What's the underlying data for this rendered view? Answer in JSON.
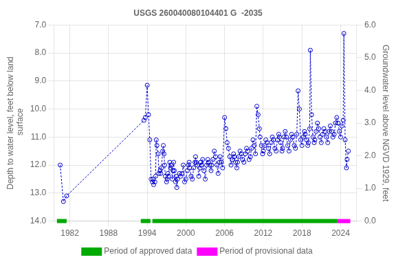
{
  "chart_data": {
    "type": "line",
    "title": "USGS 260040080104401 G  -2035",
    "ylabel": "Depth to water level, feet below land\n surface",
    "y2label": "Groundwater level above NGVD 1929, feet",
    "xlim": [
      1979.5,
      2026.5
    ],
    "xticks": [
      1982,
      1988,
      1994,
      2000,
      2006,
      2012,
      2018,
      2024
    ],
    "ylim": [
      14.0,
      7.0
    ],
    "yticks": [
      {
        "value": 7.0,
        "label": "7.0"
      },
      {
        "value": 8.0,
        "label": "8.0"
      },
      {
        "value": 9.0,
        "label": "9.0"
      },
      {
        "value": 10.0,
        "label": "10.0"
      },
      {
        "value": 11.0,
        "label": "11.0"
      },
      {
        "value": 12.0,
        "label": "12.0"
      },
      {
        "value": 13.0,
        "label": "13.0"
      },
      {
        "value": 14.0,
        "label": "14.0"
      }
    ],
    "y2lim": [
      0.0,
      6.0
    ],
    "y2ticks": [
      {
        "value": 0.0,
        "label": "0.0"
      },
      {
        "value": 1.0,
        "label": "1.0"
      },
      {
        "value": 2.0,
        "label": "2.0"
      },
      {
        "value": 3.0,
        "label": "3.0"
      },
      {
        "value": 4.0,
        "label": "4.0"
      },
      {
        "value": 5.0,
        "label": "5.0"
      },
      {
        "value": 6.0,
        "label": "6.0"
      }
    ],
    "grid": true,
    "legend": "bottom",
    "x": [
      1980.5,
      1981.0,
      1981.5,
      1993.5,
      1993.7,
      1994.0,
      1994.2,
      1994.4,
      1994.6,
      1994.8,
      1994.9,
      1995.0,
      1995.2,
      1995.3,
      1995.4,
      1995.5,
      1995.7,
      1995.8,
      1996.0,
      1996.1,
      1996.2,
      1996.4,
      1996.5,
      1996.6,
      1996.7,
      1996.8,
      1997.0,
      1997.1,
      1997.2,
      1997.3,
      1997.5,
      1997.6,
      1997.7,
      1997.9,
      1998.0,
      1998.1,
      1998.2,
      1998.4,
      1998.5,
      1998.6,
      1998.7,
      1999.0,
      1999.2,
      1999.4,
      1999.6,
      1999.8,
      2000.0,
      2000.2,
      2000.4,
      2000.5,
      2000.6,
      2000.8,
      2001.0,
      2001.2,
      2001.4,
      2001.5,
      2001.6,
      2001.8,
      2002.0,
      2002.2,
      2002.3,
      2002.4,
      2002.6,
      2002.8,
      2003.0,
      2003.2,
      2003.4,
      2003.5,
      2003.7,
      2003.9,
      2004.0,
      2004.2,
      2004.4,
      2004.6,
      2004.8,
      2005.0,
      2005.2,
      2005.3,
      2005.5,
      2005.7,
      2006.0,
      2006.2,
      2006.4,
      2006.6,
      2006.8,
      2007.0,
      2007.2,
      2007.4,
      2007.5,
      2007.7,
      2007.9,
      2008.0,
      2008.2,
      2008.4,
      2008.6,
      2008.8,
      2009.0,
      2009.2,
      2009.4,
      2009.6,
      2009.8,
      2010.0,
      2010.2,
      2010.4,
      2010.6,
      2010.8,
      2011.0,
      2011.2,
      2011.4,
      2011.5,
      2011.7,
      2011.9,
      2012.0,
      2012.2,
      2012.4,
      2012.6,
      2012.8,
      2013.0,
      2013.2,
      2013.4,
      2013.6,
      2013.8,
      2014.0,
      2014.2,
      2014.4,
      2014.5,
      2014.7,
      2014.9,
      2015.0,
      2015.2,
      2015.4,
      2015.6,
      2015.8,
      2016.0,
      2016.2,
      2016.4,
      2016.6,
      2016.8,
      2017.0,
      2017.2,
      2017.4,
      2017.6,
      2017.8,
      2018.0,
      2018.2,
      2018.4,
      2018.5,
      2018.7,
      2018.9,
      2019.0,
      2019.2,
      2019.3,
      2019.5,
      2019.7,
      2019.9,
      2020.0,
      2020.2,
      2020.4,
      2020.6,
      2020.8,
      2021.0,
      2021.2,
      2021.4,
      2021.6,
      2021.8,
      2022.0,
      2022.2,
      2022.4,
      2022.6,
      2022.8,
      2023.0,
      2023.2,
      2023.4,
      2023.6,
      2023.8,
      2024.0,
      2024.2,
      2024.4,
      2024.5,
      2024.7,
      2024.9,
      2025.0,
      2025.2
    ],
    "series": [
      {
        "color": "#0000cc",
        "line_style": "dashed",
        "marker": "circle",
        "values": [
          12.0,
          13.3,
          13.1,
          10.4,
          10.3,
          9.15,
          10.2,
          11.1,
          12.5,
          12.6,
          12.5,
          12.7,
          12.6,
          12.4,
          11.1,
          11.3,
          11.6,
          12.3,
          12.2,
          12.3,
          12.1,
          11.5,
          11.3,
          11.6,
          12.0,
          12.4,
          12.6,
          12.5,
          12.3,
          12.4,
          11.9,
          12.1,
          12.0,
          12.5,
          12.2,
          11.9,
          12.2,
          12.6,
          12.4,
          12.8,
          12.5,
          12.3,
          12.4,
          12.3,
          12.0,
          12.6,
          12.5,
          12.2,
          12.0,
          11.9,
          12.1,
          12.4,
          12.5,
          12.1,
          11.9,
          11.7,
          11.9,
          12.0,
          12.4,
          12.1,
          11.9,
          12.0,
          11.8,
          12.2,
          12.5,
          12.0,
          11.8,
          11.9,
          12.0,
          12.2,
          12.0,
          11.8,
          11.5,
          11.7,
          12.0,
          12.3,
          11.9,
          11.7,
          11.9,
          12.1,
          10.3,
          10.7,
          11.2,
          11.4,
          11.7,
          12.0,
          11.8,
          11.6,
          11.7,
          11.9,
          12.1,
          11.9,
          11.7,
          11.5,
          11.6,
          11.8,
          11.9,
          11.6,
          11.4,
          11.5,
          11.8,
          11.7,
          11.4,
          11.1,
          11.3,
          11.6,
          9.9,
          10.2,
          10.7,
          11.0,
          11.3,
          11.6,
          11.5,
          11.3,
          11.1,
          11.2,
          11.4,
          11.6,
          11.2,
          11.0,
          11.1,
          11.4,
          11.5,
          11.1,
          10.9,
          11.0,
          11.2,
          11.5,
          11.4,
          11.0,
          10.8,
          11.0,
          11.3,
          11.5,
          11.1,
          10.9,
          11.0,
          11.3,
          11.4,
          10.9,
          9.35,
          10.0,
          11.1,
          11.3,
          11.0,
          10.8,
          10.9,
          11.1,
          11.3,
          11.2,
          10.7,
          7.9,
          10.2,
          11.0,
          11.2,
          11.1,
          10.8,
          10.5,
          10.7,
          11.0,
          11.2,
          10.9,
          10.7,
          10.8,
          11.0,
          11.2,
          10.8,
          10.6,
          10.8,
          11.0,
          10.9,
          10.5,
          10.3,
          10.5,
          10.8,
          11.0,
          10.6,
          10.4,
          7.3,
          11.1,
          12.1,
          11.8,
          11.5
        ]
      },
      {
        "name": "Period of approved data",
        "type": "period",
        "color": "#00aa00",
        "y": 14.0,
        "ranges": [
          [
            1980.0,
            1981.5
          ],
          [
            1993.0,
            1994.5
          ],
          [
            1994.8,
            2023.5
          ]
        ]
      },
      {
        "name": "Period of provisional data",
        "type": "period",
        "color": "#ff00ff",
        "y": 14.0,
        "ranges": [
          [
            2023.5,
            2025.5
          ]
        ]
      }
    ]
  }
}
